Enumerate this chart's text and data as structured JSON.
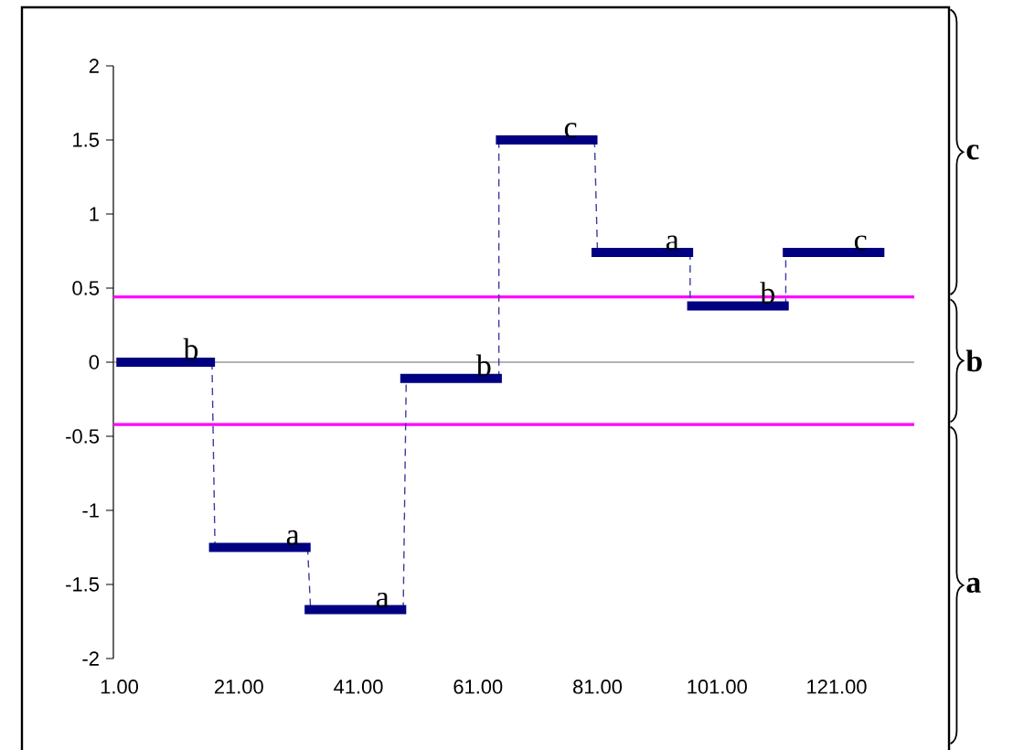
{
  "chart_data": {
    "type": "line",
    "xlim": [
      0,
      134
    ],
    "ylim": [
      -2,
      2
    ],
    "xticks": [
      {
        "value": 1,
        "label": "1.00"
      },
      {
        "value": 21,
        "label": "21.00"
      },
      {
        "value": 41,
        "label": "41.00"
      },
      {
        "value": 61,
        "label": "61.00"
      },
      {
        "value": 81,
        "label": "81.00"
      },
      {
        "value": 101,
        "label": "101.00"
      },
      {
        "value": 121,
        "label": "121.00"
      }
    ],
    "yticks": [
      -2,
      -1.5,
      -1,
      -0.5,
      0,
      0.5,
      1,
      1.5,
      2
    ],
    "series": [
      {
        "color": "#3c3ca0",
        "line_style": "dashed",
        "x": [
          16.5,
          17
        ],
        "values": [
          0,
          -1.25
        ]
      },
      {
        "color": "#3c3ca0",
        "line_style": "dashed",
        "x": [
          32.5,
          33
        ],
        "values": [
          -1.25,
          -1.67
        ]
      },
      {
        "color": "#3c3ca0",
        "line_style": "dashed",
        "x": [
          48.5,
          49
        ],
        "values": [
          -1.67,
          -0.11
        ]
      },
      {
        "color": "#3c3ca0",
        "line_style": "dashed",
        "x": [
          64.5,
          64.5
        ],
        "values": [
          -0.11,
          1.5
        ]
      },
      {
        "color": "#3c3ca0",
        "line_style": "dashed",
        "x": [
          80.5,
          81
        ],
        "values": [
          1.5,
          0.74
        ]
      },
      {
        "color": "#3c3ca0",
        "line_style": "dashed",
        "x": [
          96.5,
          96.5
        ],
        "values": [
          0.74,
          0.38
        ]
      },
      {
        "color": "#3c3ca0",
        "line_style": "dashed",
        "x": [
          112.5,
          112.5
        ],
        "values": [
          0.38,
          0.74
        ]
      },
      {
        "color": "#000080",
        "line_style": "solid",
        "x": [
          0.5,
          17
        ],
        "values": [
          0,
          0
        ]
      },
      {
        "color": "#000080",
        "line_style": "solid",
        "x": [
          16,
          33
        ],
        "values": [
          -1.25,
          -1.25
        ]
      },
      {
        "color": "#000080",
        "line_style": "solid",
        "x": [
          32,
          49
        ],
        "values": [
          -1.67,
          -1.67
        ]
      },
      {
        "color": "#000080",
        "line_style": "solid",
        "x": [
          48,
          65
        ],
        "values": [
          -0.11,
          -0.11
        ]
      },
      {
        "color": "#000080",
        "line_style": "solid",
        "x": [
          64,
          81
        ],
        "values": [
          1.5,
          1.5
        ]
      },
      {
        "color": "#000080",
        "line_style": "solid",
        "x": [
          80,
          97
        ],
        "values": [
          0.74,
          0.74
        ]
      },
      {
        "color": "#000080",
        "line_style": "solid",
        "x": [
          96,
          113
        ],
        "values": [
          0.38,
          0.38
        ]
      },
      {
        "color": "#000080",
        "line_style": "solid",
        "x": [
          112,
          129
        ],
        "values": [
          0.74,
          0.74
        ]
      }
    ],
    "ref_lines": [
      {
        "axis": "y",
        "value": 0.44,
        "color": "#ff00ff"
      },
      {
        "axis": "y",
        "value": -0.42,
        "color": "#ff00ff"
      }
    ],
    "annotations": [
      "c",
      "b",
      "a",
      {
        "text": "b",
        "x": 13,
        "y": 0
      },
      {
        "text": "a",
        "x": 30,
        "y": -1.25
      },
      {
        "text": "a",
        "x": 45,
        "y": -1.67
      },
      {
        "text": "b",
        "x": 62,
        "y": -0.11
      },
      {
        "text": "c",
        "x": 76.5,
        "y": 1.5
      },
      {
        "text": "a",
        "x": 93.5,
        "y": 0.74
      },
      {
        "text": "b",
        "x": 109.5,
        "y": 0.38
      },
      {
        "text": "c",
        "x": 125,
        "y": 0.74
      }
    ]
  }
}
